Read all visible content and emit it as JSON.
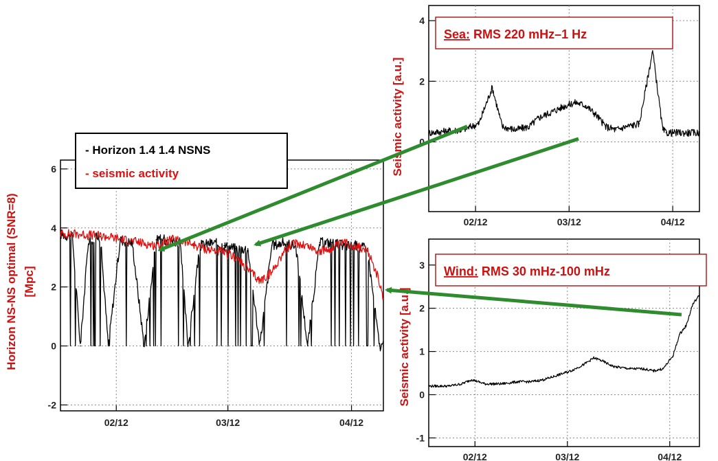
{
  "colors": {
    "horizon": "#000000",
    "seismic": "#e01010",
    "arrow": "#2e8b2e",
    "label_red": "#cc1111",
    "frame": "#000000"
  },
  "chart_data": [
    {
      "type": "line",
      "ylabel_line1": "Horizon NS-NS optimal (SNR=8)",
      "ylabel_line2": "[Mpc]",
      "x_ticks": [
        "02/12",
        "03/12",
        "04/12"
      ],
      "y_ticks": [
        "-2",
        "0",
        "2",
        "4",
        "6"
      ],
      "ylim": [
        -2.2,
        6.3
      ],
      "grid": true,
      "legend": {
        "placement": "top-left",
        "entries": [
          "- Horizon 1.4 1.4 NSNS",
          "- seismic activity"
        ]
      },
      "series": [
        {
          "name": "- Horizon 1.4 1.4 NSNS",
          "color": "#000000",
          "x": [
            "01/29",
            "02/01",
            "02/03",
            "02/05",
            "02/08",
            "02/10",
            "02/13",
            "02/16",
            "02/19",
            "02/22",
            "02/25",
            "02/28",
            "03/02",
            "03/05",
            "03/08",
            "03/11",
            "03/14",
            "03/17",
            "03/20",
            "03/23",
            "03/26",
            "03/29",
            "04/01",
            "04/04",
            "04/07",
            "04/10",
            "04/13",
            "04/16",
            "04/19",
            "04/20"
          ],
          "values": [
            3.8,
            3.7,
            0,
            3.6,
            3.7,
            0,
            3.6,
            3.5,
            0,
            3.6,
            3.6,
            3.5,
            0,
            3.4,
            3.5,
            3.4,
            3.3,
            3.3,
            0,
            3.4,
            3.5,
            3.4,
            0,
            3.5,
            3.5,
            3.4,
            3.4,
            3.3,
            0,
            0
          ]
        },
        {
          "name": "- seismic activity",
          "color": "#e01010",
          "x": [
            "01/29",
            "02/02",
            "02/06",
            "02/10",
            "02/14",
            "02/18",
            "02/22",
            "02/26",
            "03/02",
            "03/06",
            "03/10",
            "03/14",
            "03/17",
            "03/20",
            "03/23",
            "03/26",
            "03/29",
            "04/01",
            "04/04",
            "04/07",
            "04/10",
            "04/13",
            "04/16",
            "04/18",
            "04/20"
          ],
          "values": [
            3.8,
            3.8,
            3.75,
            3.7,
            3.6,
            3.5,
            3.4,
            3.6,
            3.5,
            3.3,
            3.2,
            3.0,
            2.6,
            2.2,
            2.5,
            3.2,
            3.5,
            3.4,
            3.2,
            3.3,
            3.5,
            3.4,
            3.2,
            2.6,
            1.6
          ]
        }
      ]
    },
    {
      "type": "line",
      "label_prefix": "Sea:",
      "label_rest": " RMS 220 mHz–1 Hz",
      "ylabel": "Seismic activity [a.u.]",
      "x_ticks": [
        "02/12",
        "03/12",
        "04/12"
      ],
      "y_ticks": [
        "0",
        "2",
        "4"
      ],
      "ylim": [
        -2.3,
        4.5
      ],
      "grid": true,
      "series": [
        {
          "color": "#000000",
          "x": [
            "01/29",
            "02/03",
            "02/08",
            "02/13",
            "02/17",
            "02/20",
            "02/24",
            "02/28",
            "03/03",
            "03/07",
            "03/11",
            "03/14",
            "03/17",
            "03/20",
            "03/23",
            "03/26",
            "03/29",
            "04/02",
            "04/06",
            "04/09",
            "04/10",
            "04/13",
            "04/17",
            "04/20"
          ],
          "values": [
            0.3,
            0.35,
            0.4,
            0.6,
            1.8,
            0.5,
            0.4,
            0.5,
            0.8,
            1.0,
            1.2,
            1.3,
            1.2,
            0.9,
            0.5,
            0.4,
            0.5,
            0.6,
            3.0,
            0.4,
            0.3,
            0.3,
            0.3,
            0.3
          ]
        }
      ]
    },
    {
      "type": "line",
      "label_prefix": "Wind:",
      "label_rest": " RMS 30 mHz-100 mHz",
      "ylabel": "Seismic activity [a.u.]",
      "x_ticks": [
        "02/12",
        "03/12",
        "04/12"
      ],
      "y_ticks": [
        "-1",
        "0",
        "1",
        "2",
        "3"
      ],
      "ylim": [
        -1.2,
        3.6
      ],
      "grid": true,
      "series": [
        {
          "color": "#000000",
          "x": [
            "01/29",
            "02/04",
            "02/08",
            "02/11",
            "02/15",
            "02/20",
            "02/25",
            "03/01",
            "03/05",
            "03/09",
            "03/13",
            "03/17",
            "03/20",
            "03/22",
            "03/26",
            "03/31",
            "04/04",
            "04/07",
            "04/10",
            "04/13",
            "04/15",
            "04/17",
            "04/19",
            "04/21"
          ],
          "values": [
            0.2,
            0.2,
            0.25,
            0.35,
            0.25,
            0.25,
            0.3,
            0.3,
            0.35,
            0.45,
            0.55,
            0.7,
            0.85,
            0.8,
            0.65,
            0.6,
            0.6,
            0.55,
            0.6,
            0.9,
            1.4,
            1.6,
            2.1,
            2.3
          ]
        }
      ]
    }
  ]
}
